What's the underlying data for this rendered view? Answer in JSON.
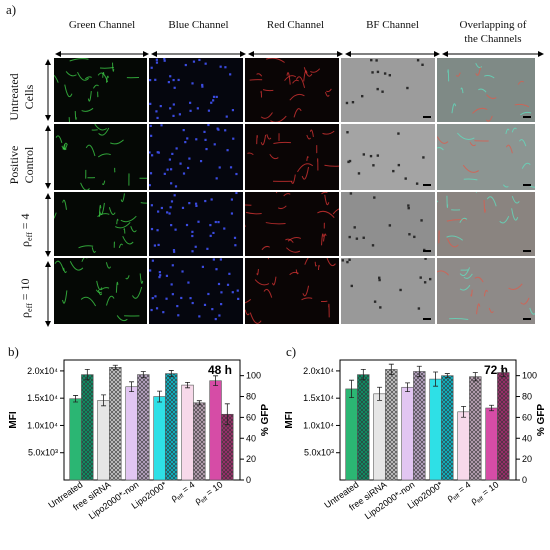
{
  "panel_a": {
    "label": "a)",
    "columns": [
      "Green Channel",
      "Blue Channel",
      "Red Channel",
      "BF Channel",
      "Overlapping of the Channels"
    ],
    "column_overlap_line1": "Overlapping of",
    "column_overlap_line2": "the Channels",
    "rows": [
      {
        "line1": "Untreated",
        "line2": "Cells"
      },
      {
        "line1": "Positive",
        "line2": "Control"
      },
      {
        "line1": "ρ",
        "sub": "eff",
        "rest": " = 4"
      },
      {
        "line1": "ρ",
        "sub": "eff",
        "rest": " = 10"
      }
    ]
  },
  "chart_data": [
    {
      "panel_label": "b)",
      "type": "bar",
      "annotation": "48 h",
      "ylabel_left": "MFI",
      "ylabel_right": "% GFP",
      "left_ticks": [
        "5.0x10³",
        "1.0x10⁴",
        "1.5x10⁴",
        "2.0x10⁴"
      ],
      "right_ticks": [
        "0",
        "20",
        "40",
        "60",
        "80",
        "100"
      ],
      "ylim_left": [
        0,
        22000
      ],
      "ylim_right": [
        0,
        115
      ],
      "categories": [
        "Untreated",
        "free siRNA",
        "Lipo2000*-non",
        "Lipo2000*",
        "ρeff = 4",
        "ρeff = 10"
      ],
      "category_labels": [
        {
          "main": "Untreated"
        },
        {
          "main": "free siRNA"
        },
        {
          "main": "Lipo2000*-non"
        },
        {
          "main": "Lipo2000*"
        },
        {
          "main": "ρ",
          "sub": "eff",
          "rest": " = 4"
        },
        {
          "main": "ρ",
          "sub": "eff",
          "rest": " = 10"
        }
      ],
      "series": [
        {
          "name": "MFI",
          "axis": "left",
          "values": [
            14900,
            14600,
            17100,
            15300,
            17400,
            18200
          ],
          "errors": [
            600,
            1000,
            900,
            1000,
            500,
            900
          ]
        },
        {
          "name": "% GFP",
          "axis": "right",
          "values": [
            101,
            108,
            101,
            102,
            74,
            63
          ],
          "errors": [
            5,
            2,
            3,
            3,
            2,
            10
          ]
        }
      ],
      "colors": {
        "mfi": [
          "#2bb673",
          "#e6e6e6",
          "#e2c6f2",
          "#2ee0e6",
          "#f7d9ea",
          "#d64ca6"
        ],
        "gfp": [
          "#0f8f66",
          "#c4c4c4",
          "#b9a6c4",
          "#0fb5c4",
          "#b9a2b4",
          "#9c2f6c"
        ]
      }
    },
    {
      "panel_label": "c)",
      "type": "bar",
      "annotation": "72 h",
      "ylabel_left": "MFI",
      "ylabel_right": "% GFP",
      "left_ticks": [
        "5.0x10³",
        "1.0x10⁴",
        "1.5x10⁴",
        "2.0x10⁴"
      ],
      "right_ticks": [
        "0",
        "20",
        "40",
        "60",
        "80",
        "100"
      ],
      "ylim_left": [
        0,
        22000
      ],
      "ylim_right": [
        0,
        115
      ],
      "categories": [
        "Untreated",
        "free siRNA",
        "Lipo2000*-non",
        "Lipo2000*",
        "ρeff = 4",
        "ρeff = 10"
      ],
      "category_labels": [
        {
          "main": "Untreated"
        },
        {
          "main": "free siRNA"
        },
        {
          "main": "Lipo2000*-non"
        },
        {
          "main": "Lipo2000*"
        },
        {
          "main": "ρ",
          "sub": "eff",
          "rest": " = 4"
        },
        {
          "main": "ρ",
          "sub": "eff",
          "rest": " = 10"
        }
      ],
      "series": [
        {
          "name": "MFI",
          "axis": "left",
          "values": [
            16700,
            15800,
            17000,
            18500,
            12500,
            13200
          ],
          "errors": [
            1600,
            1200,
            800,
            1300,
            1000,
            500
          ]
        },
        {
          "name": "% GFP",
          "axis": "right",
          "values": [
            101,
            106,
            104,
            100,
            99,
            103
          ],
          "errors": [
            5,
            5,
            5,
            2,
            4,
            4
          ]
        }
      ],
      "colors": {
        "mfi": [
          "#2bb673",
          "#e6e6e6",
          "#e2c6f2",
          "#2ee0e6",
          "#f7d9ea",
          "#d64ca6"
        ],
        "gfp": [
          "#0f8f66",
          "#c4c4c4",
          "#b9a6c4",
          "#0fb5c4",
          "#b9a2b4",
          "#9c2f6c"
        ]
      }
    }
  ]
}
